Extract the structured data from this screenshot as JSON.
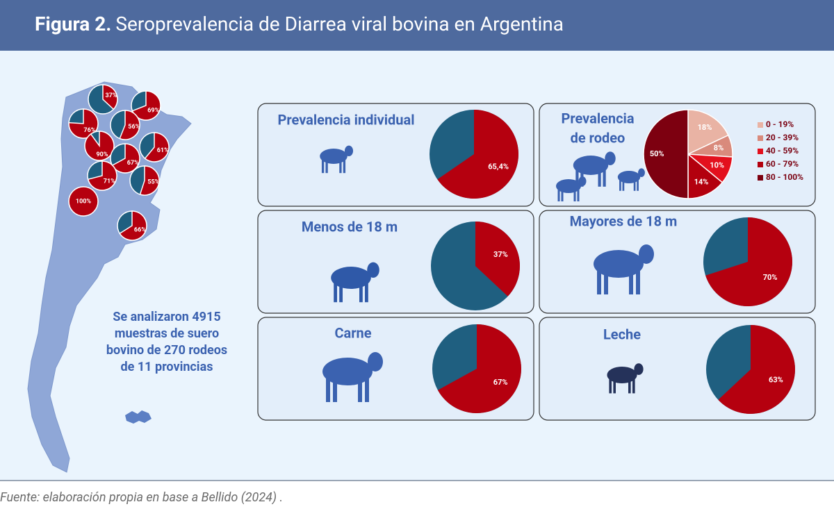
{
  "header": {
    "figure": "Figura 2.",
    "title": "Seroprevalencia de Diarrea viral bovina en Argentina"
  },
  "map_pies": {
    "values": [
      37,
      69,
      76,
      56,
      90,
      61,
      67,
      71,
      55,
      100,
      66
    ],
    "value_labels": [
      "37%",
      "69%",
      "76%",
      "56%",
      "90%",
      "61%",
      "67%",
      "71%",
      "55%",
      "100%",
      "66%"
    ]
  },
  "note": {
    "lines": [
      "Se analizaron 4915",
      "muestras de suero",
      "bovino de 270 rodeos",
      "de 11 provincias"
    ]
  },
  "panels": [
    {
      "title": "Prevalencia individual",
      "value": 65.4,
      "value_label": "65,4%"
    },
    {
      "title": "Menos de 18 m",
      "value": 37,
      "value_label": "37%"
    },
    {
      "title": "Mayores de 18 m",
      "value": 70,
      "value_label": "70%"
    },
    {
      "title": "Carne",
      "value": 67,
      "value_label": "67%"
    },
    {
      "title": "Leche",
      "value": 63,
      "value_label": "63%"
    }
  ],
  "herd": {
    "title_lines": [
      "Prevalencia",
      "de rodeo"
    ],
    "categories": [
      "0 - 19%",
      "20 - 39%",
      "40 - 59%",
      "60 - 79%",
      "80 - 100%"
    ],
    "values": [
      18,
      8,
      10,
      14,
      50
    ],
    "value_labels": [
      "18%",
      "8%",
      "10%",
      "14%",
      "50%"
    ],
    "colors": [
      "#e9b3a4",
      "#d98a7c",
      "#e3101d",
      "#b3000e",
      "#7d0010"
    ]
  },
  "colors": {
    "positive": "#b5000f",
    "negative": "#1f5f80"
  },
  "source": "Fuente: elaboración propia en base a Bellido (2024) ."
}
